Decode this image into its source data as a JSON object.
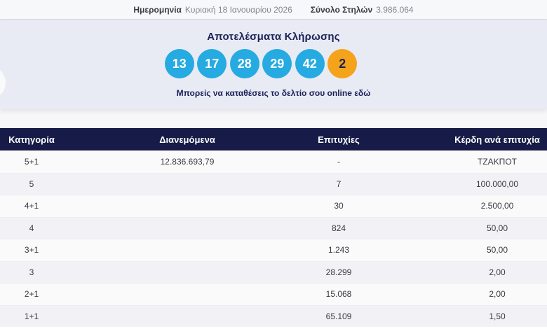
{
  "topbar": {
    "date_label": "Ημερομηνία",
    "date_value": "Κυριακή 18 Ιανουαρίου 2026",
    "columns_label": "Σύνολο Στηλών",
    "columns_value": "3.986.064"
  },
  "draw": {
    "title": "Αποτελέσματα Κλήρωσης",
    "numbers": [
      "13",
      "17",
      "28",
      "29",
      "42"
    ],
    "bonus": "2",
    "cta_text": "Μπορείς να καταθέσεις το δελτίο σου online εδώ",
    "ball_color": "#25aae1",
    "bonus_color": "#f5a31b",
    "accent_navy": "#1c2156"
  },
  "table": {
    "header_bg": "#161b47",
    "headers": [
      "Κατηγορία",
      "Διανεμόμενα",
      "Επιτυχίες",
      "Κέρδη ανά επιτυχία"
    ],
    "rows": [
      {
        "category": "5+1",
        "distributed": "12.836.693,79",
        "winners": "-",
        "prize": "ΤΖΑΚΠΟΤ"
      },
      {
        "category": "5",
        "distributed": "",
        "winners": "7",
        "prize": "100.000,00"
      },
      {
        "category": "4+1",
        "distributed": "",
        "winners": "30",
        "prize": "2.500,00"
      },
      {
        "category": "4",
        "distributed": "",
        "winners": "824",
        "prize": "50,00"
      },
      {
        "category": "3+1",
        "distributed": "",
        "winners": "1.243",
        "prize": "50,00"
      },
      {
        "category": "3",
        "distributed": "",
        "winners": "28.299",
        "prize": "2,00"
      },
      {
        "category": "2+1",
        "distributed": "",
        "winners": "15.068",
        "prize": "2,00"
      },
      {
        "category": "1+1",
        "distributed": "",
        "winners": "65.109",
        "prize": "1,50"
      }
    ]
  }
}
